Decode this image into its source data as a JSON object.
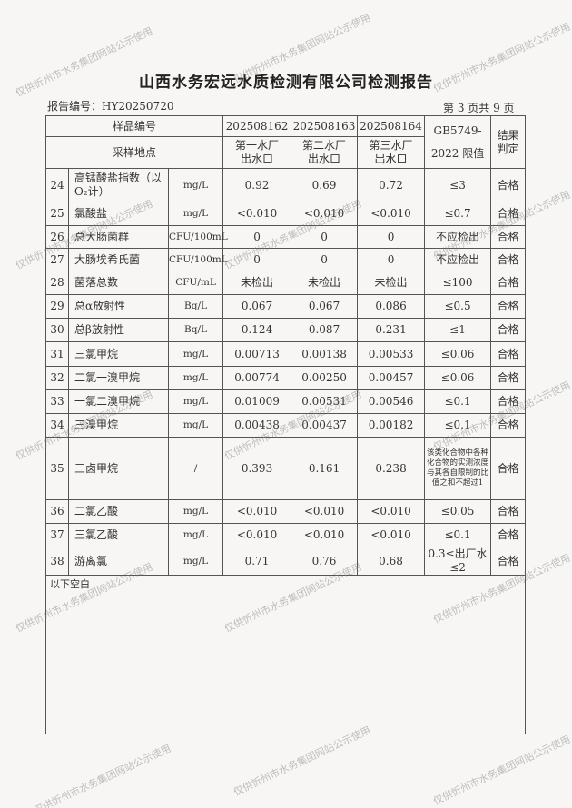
{
  "header": {
    "title": "山西水务宏远水质检测有限公司检测报告",
    "report_no": "报告编号：HY20250720",
    "page": "第 3 页共 9 页"
  },
  "table": {
    "h_sample_no": "样品编号",
    "h_location": "采样地点",
    "samples": [
      "202508162",
      "202508163",
      "202508164"
    ],
    "locations": [
      "第一水厂出水口",
      "第二水厂出水口",
      "第三水厂出水口"
    ],
    "h_limit_1": "GB5749-",
    "h_limit_2": "2022 限值",
    "h_result": "结果判定",
    "rows": [
      {
        "no": "24",
        "name": "高锰酸盐指数（以O₂计）",
        "unit": "mg/L",
        "v": [
          "0.92",
          "0.69",
          "0.72"
        ],
        "limit": "≤3",
        "result": "合格"
      },
      {
        "no": "25",
        "name": "氯酸盐",
        "unit": "mg/L",
        "v": [
          "<0.010",
          "<0.010",
          "<0.010"
        ],
        "limit": "≤0.7",
        "result": "合格"
      },
      {
        "no": "26",
        "name": "总大肠菌群",
        "unit": "CFU/100mL",
        "v": [
          "0",
          "0",
          "0"
        ],
        "limit": "不应检出",
        "result": "合格"
      },
      {
        "no": "27",
        "name": "大肠埃希氏菌",
        "unit": "CFU/100mL",
        "v": [
          "0",
          "0",
          "0"
        ],
        "limit": "不应检出",
        "result": "合格"
      },
      {
        "no": "28",
        "name": "菌落总数",
        "unit": "CFU/mL",
        "v": [
          "未检出",
          "未检出",
          "未检出"
        ],
        "limit": "≤100",
        "result": "合格"
      },
      {
        "no": "29",
        "name": "总α放射性",
        "unit": "Bq/L",
        "v": [
          "0.067",
          "0.067",
          "0.086"
        ],
        "limit": "≤0.5",
        "result": "合格"
      },
      {
        "no": "30",
        "name": "总β放射性",
        "unit": "Bq/L",
        "v": [
          "0.124",
          "0.087",
          "0.231"
        ],
        "limit": "≤1",
        "result": "合格"
      },
      {
        "no": "31",
        "name": "三氯甲烷",
        "unit": "mg/L",
        "v": [
          "0.00713",
          "0.00138",
          "0.00533"
        ],
        "limit": "≤0.06",
        "result": "合格"
      },
      {
        "no": "32",
        "name": "二氯一溴甲烷",
        "unit": "mg/L",
        "v": [
          "0.00774",
          "0.00250",
          "0.00457"
        ],
        "limit": "≤0.06",
        "result": "合格"
      },
      {
        "no": "33",
        "name": "一氯二溴甲烷",
        "unit": "mg/L",
        "v": [
          "0.01009",
          "0.00531",
          "0.00546"
        ],
        "limit": "≤0.1",
        "result": "合格"
      },
      {
        "no": "34",
        "name": "三溴甲烷",
        "unit": "mg/L",
        "v": [
          "0.00438",
          "0.00437",
          "0.00182"
        ],
        "limit": "≤0.1",
        "result": "合格"
      },
      {
        "no": "35",
        "name": "三卤甲烷",
        "unit": "/",
        "v": [
          "0.393",
          "0.161",
          "0.238"
        ],
        "limit": "该类化合物中各种化合物的实测浓度与其各自限制的比值之和不超过1",
        "result": "合格"
      },
      {
        "no": "36",
        "name": "二氯乙酸",
        "unit": "mg/L",
        "v": [
          "<0.010",
          "<0.010",
          "<0.010"
        ],
        "limit": "≤0.05",
        "result": "合格"
      },
      {
        "no": "37",
        "name": "三氯乙酸",
        "unit": "mg/L",
        "v": [
          "<0.010",
          "<0.010",
          "<0.010"
        ],
        "limit": "≤0.1",
        "result": "合格"
      },
      {
        "no": "38",
        "name": "游离氯",
        "unit": "mg/L",
        "v": [
          "0.71",
          "0.76",
          "0.68"
        ],
        "limit": "0.3≤出厂水≤2",
        "result": "合格"
      }
    ],
    "blank_note": "以下空白"
  },
  "watermark": "仅供忻州市水务集团网站公示使用"
}
